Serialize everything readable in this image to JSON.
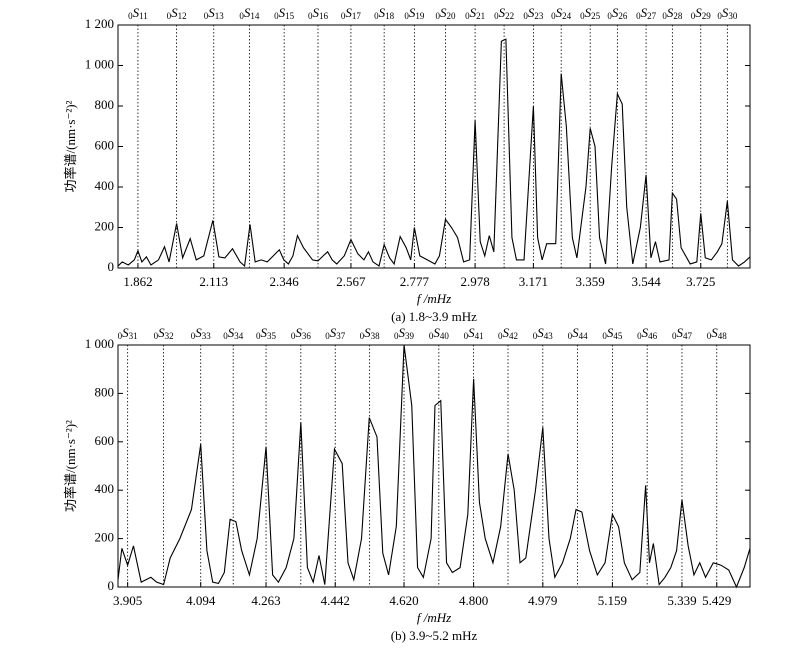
{
  "chart_data": [
    {
      "type": "line",
      "title": "(a) 1.8~3.9 mHz",
      "xlabel": "f /mHz",
      "ylabel": "功率谱/(nm·s⁻²)²",
      "xlim": [
        1.796,
        3.888
      ],
      "ylim": [
        0,
        1200
      ],
      "xticks": [
        1.862,
        2.113,
        2.346,
        2.567,
        2.777,
        2.978,
        3.171,
        3.359,
        3.544,
        3.725
      ],
      "yticks": [
        0,
        200,
        400,
        600,
        800,
        {
          "value": 1000,
          "label": "1 000"
        },
        {
          "value": 1200,
          "label": "1 200"
        }
      ],
      "modes": [
        {
          "label": "0S11",
          "x": 1.862
        },
        {
          "label": "0S12",
          "x": 1.99
        },
        {
          "label": "0S13",
          "x": 2.113
        },
        {
          "label": "0S14",
          "x": 2.231
        },
        {
          "label": "0S15",
          "x": 2.346
        },
        {
          "label": "0S16",
          "x": 2.458
        },
        {
          "label": "0S17",
          "x": 2.567
        },
        {
          "label": "0S18",
          "x": 2.677
        },
        {
          "label": "0S19",
          "x": 2.777
        },
        {
          "label": "0S20",
          "x": 2.88
        },
        {
          "label": "0S21",
          "x": 2.978
        },
        {
          "label": "0S22",
          "x": 3.074
        },
        {
          "label": "0S23",
          "x": 3.171
        },
        {
          "label": "0S24",
          "x": 3.263
        },
        {
          "label": "0S25",
          "x": 3.359
        },
        {
          "label": "0S26",
          "x": 3.449
        },
        {
          "label": "0S27",
          "x": 3.544
        },
        {
          "label": "0S28",
          "x": 3.631
        },
        {
          "label": "0S29",
          "x": 3.725
        },
        {
          "label": "0S30",
          "x": 3.813
        }
      ],
      "x": [
        1.796,
        1.81,
        1.83,
        1.85,
        1.862,
        1.875,
        1.89,
        1.905,
        1.93,
        1.95,
        1.965,
        1.99,
        2.01,
        2.035,
        2.055,
        2.08,
        2.11,
        2.13,
        2.15,
        2.175,
        2.2,
        2.215,
        2.233,
        2.25,
        2.27,
        2.29,
        2.31,
        2.33,
        2.345,
        2.36,
        2.375,
        2.39,
        2.41,
        2.44,
        2.458,
        2.475,
        2.49,
        2.505,
        2.52,
        2.545,
        2.567,
        2.59,
        2.61,
        2.625,
        2.64,
        2.66,
        2.677,
        2.695,
        2.71,
        2.73,
        2.75,
        2.765,
        2.777,
        2.795,
        2.82,
        2.845,
        2.86,
        2.88,
        2.9,
        2.92,
        2.94,
        2.96,
        2.978,
        2.995,
        3.01,
        3.025,
        3.04,
        3.065,
        3.08,
        3.1,
        3.115,
        3.14,
        3.171,
        3.185,
        3.2,
        3.215,
        3.245,
        3.263,
        3.28,
        3.3,
        3.315,
        3.345,
        3.359,
        3.375,
        3.39,
        3.41,
        3.43,
        3.449,
        3.465,
        3.48,
        3.5,
        3.525,
        3.544,
        3.56,
        3.575,
        3.59,
        3.62,
        3.631,
        3.645,
        3.66,
        3.69,
        3.712,
        3.725,
        3.74,
        3.76,
        3.78,
        3.795,
        3.813,
        3.83,
        3.85,
        3.87,
        3.888
      ],
      "series": [
        {
          "color": "#000000",
          "values": [
            10,
            30,
            15,
            40,
            85,
            30,
            55,
            15,
            40,
            105,
            30,
            220,
            50,
            145,
            40,
            60,
            235,
            55,
            50,
            95,
            30,
            10,
            215,
            30,
            40,
            30,
            60,
            90,
            40,
            20,
            60,
            160,
            100,
            40,
            35,
            60,
            80,
            40,
            20,
            60,
            140,
            70,
            40,
            80,
            30,
            10,
            115,
            50,
            20,
            155,
            100,
            40,
            200,
            60,
            40,
            20,
            60,
            240,
            200,
            150,
            30,
            40,
            730,
            130,
            60,
            160,
            80,
            1120,
            1130,
            150,
            40,
            40,
            800,
            150,
            40,
            120,
            120,
            960,
            700,
            150,
            50,
            400,
            690,
            600,
            150,
            20,
            500,
            860,
            810,
            300,
            20,
            200,
            460,
            50,
            130,
            30,
            40,
            370,
            340,
            100,
            20,
            30,
            270,
            50,
            40,
            80,
            120,
            330,
            40,
            10,
            30,
            55
          ]
        }
      ]
    },
    {
      "type": "line",
      "title": "(b) 3.9~5.2 mHz",
      "xlabel": "f /mHz",
      "ylabel": "功率谱/(nm·s⁻²)²",
      "xlim": [
        3.88,
        5.515
      ],
      "ylim": [
        0,
        1000
      ],
      "xticks": [
        3.905,
        4.094,
        4.263,
        4.442,
        {
          "value": 4.62,
          "label": "4.620"
        },
        {
          "value": 4.8,
          "label": "4.800"
        },
        4.979,
        5.159,
        5.339,
        5.429
      ],
      "yticks": [
        0,
        200,
        400,
        600,
        800,
        {
          "value": 1000,
          "label": "1 000"
        }
      ],
      "modes": [
        {
          "label": "0S31",
          "x": 3.905
        },
        {
          "label": "0S32",
          "x": 3.998
        },
        {
          "label": "0S33",
          "x": 4.094
        },
        {
          "label": "0S34",
          "x": 4.178
        },
        {
          "label": "0S35",
          "x": 4.263
        },
        {
          "label": "0S36",
          "x": 4.353
        },
        {
          "label": "0S37",
          "x": 4.442
        },
        {
          "label": "0S38",
          "x": 4.531
        },
        {
          "label": "0S39",
          "x": 4.62
        },
        {
          "label": "0S40",
          "x": 4.71
        },
        {
          "label": "0S41",
          "x": 4.8
        },
        {
          "label": "0S42",
          "x": 4.889
        },
        {
          "label": "0S43",
          "x": 4.979
        },
        {
          "label": "0S44",
          "x": 5.069
        },
        {
          "label": "0S45",
          "x": 5.159
        },
        {
          "label": "0S46",
          "x": 5.249
        },
        {
          "label": "0S47",
          "x": 5.339
        },
        {
          "label": "0S48",
          "x": 5.429
        }
      ],
      "x": [
        3.88,
        3.89,
        3.905,
        3.92,
        3.94,
        3.965,
        3.98,
        3.998,
        4.015,
        4.04,
        4.07,
        4.094,
        4.11,
        4.125,
        4.14,
        4.155,
        4.17,
        4.185,
        4.2,
        4.22,
        4.24,
        4.263,
        4.28,
        4.295,
        4.315,
        4.335,
        4.353,
        4.37,
        4.385,
        4.4,
        4.415,
        4.44,
        4.46,
        4.475,
        4.49,
        4.51,
        4.53,
        4.55,
        4.565,
        4.58,
        4.6,
        4.62,
        4.64,
        4.655,
        4.67,
        4.69,
        4.7,
        4.715,
        4.73,
        4.745,
        4.765,
        4.785,
        4.8,
        4.815,
        4.83,
        4.85,
        4.87,
        4.889,
        4.905,
        4.92,
        4.935,
        4.96,
        4.979,
        4.995,
        5.01,
        5.03,
        5.05,
        5.065,
        5.08,
        5.1,
        5.12,
        5.14,
        5.159,
        5.175,
        5.19,
        5.21,
        5.23,
        5.245,
        5.255,
        5.265,
        5.28,
        5.295,
        5.31,
        5.325,
        5.339,
        5.355,
        5.37,
        5.385,
        5.4,
        5.42,
        5.44,
        5.46,
        5.48,
        5.5,
        5.515
      ],
      "series": [
        {
          "color": "#000000",
          "values": [
            30,
            160,
            90,
            170,
            20,
            40,
            20,
            10,
            120,
            200,
            320,
            590,
            150,
            20,
            15,
            60,
            280,
            270,
            150,
            50,
            200,
            580,
            50,
            20,
            80,
            200,
            680,
            80,
            20,
            130,
            10,
            570,
            510,
            100,
            30,
            200,
            700,
            620,
            140,
            50,
            250,
            1000,
            750,
            80,
            40,
            200,
            750,
            770,
            100,
            60,
            80,
            300,
            860,
            350,
            200,
            100,
            250,
            550,
            400,
            100,
            120,
            400,
            660,
            200,
            40,
            100,
            200,
            320,
            310,
            150,
            50,
            100,
            300,
            250,
            100,
            30,
            60,
            420,
            100,
            180,
            10,
            40,
            80,
            150,
            360,
            170,
            50,
            100,
            40,
            100,
            90,
            70,
            0,
            80,
            160
          ]
        }
      ]
    }
  ]
}
